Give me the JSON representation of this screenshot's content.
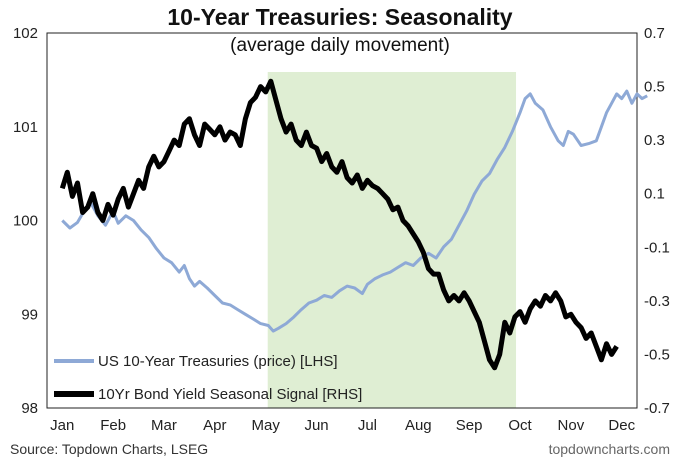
{
  "chart_data": {
    "type": "line",
    "title": "10-Year Treasuries: Seasonality",
    "subtitle": "(average daily movement)",
    "x_categories": [
      "Jan",
      "Feb",
      "Mar",
      "Apr",
      "May",
      "Jun",
      "Jul",
      "Aug",
      "Sep",
      "Oct",
      "Nov",
      "Dec"
    ],
    "y_left": {
      "range": [
        98,
        102
      ],
      "ticks": [
        "98",
        "99",
        "100",
        "101",
        "102"
      ]
    },
    "y_right": {
      "range": [
        -0.7,
        0.7
      ],
      "ticks": [
        "0.7",
        "0.5",
        "0.3",
        "0.1",
        "-0.1",
        "-0.3",
        "-0.5",
        "-0.7"
      ]
    },
    "shaded_region": {
      "from": "May",
      "to": "Oct",
      "color": "#dfeed3"
    },
    "series": [
      {
        "name": "US 10-Year Treasuries (price) [LHS]",
        "axis": "left",
        "color": "#8ea9d6",
        "points": [
          [
            0.0,
            100.0
          ],
          [
            0.15,
            99.92
          ],
          [
            0.3,
            99.98
          ],
          [
            0.45,
            100.12
          ],
          [
            0.55,
            100.2
          ],
          [
            0.7,
            100.05
          ],
          [
            0.85,
            99.95
          ],
          [
            1.0,
            100.1
          ],
          [
            1.1,
            99.97
          ],
          [
            1.25,
            100.05
          ],
          [
            1.4,
            100.0
          ],
          [
            1.55,
            99.9
          ],
          [
            1.7,
            99.82
          ],
          [
            1.85,
            99.7
          ],
          [
            2.0,
            99.6
          ],
          [
            2.15,
            99.55
          ],
          [
            2.3,
            99.45
          ],
          [
            2.4,
            99.52
          ],
          [
            2.5,
            99.38
          ],
          [
            2.6,
            99.3
          ],
          [
            2.7,
            99.35
          ],
          [
            2.85,
            99.28
          ],
          [
            3.0,
            99.2
          ],
          [
            3.15,
            99.12
          ],
          [
            3.3,
            99.1
          ],
          [
            3.45,
            99.05
          ],
          [
            3.6,
            99.0
          ],
          [
            3.75,
            98.95
          ],
          [
            3.9,
            98.9
          ],
          [
            4.05,
            98.88
          ],
          [
            4.15,
            98.82
          ],
          [
            4.25,
            98.85
          ],
          [
            4.4,
            98.9
          ],
          [
            4.55,
            98.97
          ],
          [
            4.7,
            99.05
          ],
          [
            4.85,
            99.12
          ],
          [
            5.0,
            99.15
          ],
          [
            5.15,
            99.2
          ],
          [
            5.3,
            99.18
          ],
          [
            5.45,
            99.25
          ],
          [
            5.6,
            99.3
          ],
          [
            5.75,
            99.28
          ],
          [
            5.9,
            99.22
          ],
          [
            6.0,
            99.32
          ],
          [
            6.15,
            99.38
          ],
          [
            6.3,
            99.42
          ],
          [
            6.45,
            99.45
          ],
          [
            6.6,
            99.5
          ],
          [
            6.75,
            99.55
          ],
          [
            6.9,
            99.52
          ],
          [
            7.05,
            99.6
          ],
          [
            7.2,
            99.65
          ],
          [
            7.35,
            99.6
          ],
          [
            7.5,
            99.72
          ],
          [
            7.65,
            99.8
          ],
          [
            7.8,
            99.95
          ],
          [
            7.95,
            100.1
          ],
          [
            8.1,
            100.28
          ],
          [
            8.25,
            100.42
          ],
          [
            8.4,
            100.5
          ],
          [
            8.55,
            100.65
          ],
          [
            8.7,
            100.78
          ],
          [
            8.85,
            100.95
          ],
          [
            9.0,
            101.15
          ],
          [
            9.1,
            101.3
          ],
          [
            9.2,
            101.35
          ],
          [
            9.3,
            101.25
          ],
          [
            9.45,
            101.18
          ],
          [
            9.6,
            101.0
          ],
          [
            9.75,
            100.85
          ],
          [
            9.85,
            100.8
          ],
          [
            9.95,
            100.95
          ],
          [
            10.05,
            100.92
          ],
          [
            10.2,
            100.8
          ],
          [
            10.35,
            100.82
          ],
          [
            10.5,
            100.85
          ],
          [
            10.6,
            101.0
          ],
          [
            10.7,
            101.15
          ],
          [
            10.8,
            101.25
          ],
          [
            10.9,
            101.35
          ],
          [
            11.0,
            101.3
          ],
          [
            11.1,
            101.38
          ],
          [
            11.2,
            101.25
          ],
          [
            11.3,
            101.35
          ],
          [
            11.4,
            101.3
          ],
          [
            11.5,
            101.33
          ]
        ]
      },
      {
        "name": "10Yr Bond Yield Seasonal Signal [RHS]",
        "axis": "right",
        "color": "#000000",
        "points": [
          [
            0.0,
            0.12
          ],
          [
            0.1,
            0.18
          ],
          [
            0.2,
            0.09
          ],
          [
            0.3,
            0.14
          ],
          [
            0.4,
            0.03
          ],
          [
            0.5,
            0.05
          ],
          [
            0.6,
            0.1
          ],
          [
            0.7,
            0.03
          ],
          [
            0.8,
            0.0
          ],
          [
            0.9,
            0.06
          ],
          [
            1.0,
            0.02
          ],
          [
            1.1,
            0.08
          ],
          [
            1.2,
            0.12
          ],
          [
            1.3,
            0.05
          ],
          [
            1.4,
            0.1
          ],
          [
            1.5,
            0.15
          ],
          [
            1.6,
            0.12
          ],
          [
            1.7,
            0.2
          ],
          [
            1.8,
            0.24
          ],
          [
            1.9,
            0.2
          ],
          [
            2.0,
            0.22
          ],
          [
            2.1,
            0.26
          ],
          [
            2.2,
            0.3
          ],
          [
            2.3,
            0.28
          ],
          [
            2.4,
            0.36
          ],
          [
            2.5,
            0.38
          ],
          [
            2.6,
            0.32
          ],
          [
            2.7,
            0.28
          ],
          [
            2.8,
            0.36
          ],
          [
            2.9,
            0.34
          ],
          [
            3.0,
            0.32
          ],
          [
            3.1,
            0.35
          ],
          [
            3.2,
            0.3
          ],
          [
            3.3,
            0.33
          ],
          [
            3.4,
            0.32
          ],
          [
            3.5,
            0.28
          ],
          [
            3.6,
            0.38
          ],
          [
            3.7,
            0.44
          ],
          [
            3.8,
            0.46
          ],
          [
            3.9,
            0.5
          ],
          [
            4.0,
            0.48
          ],
          [
            4.1,
            0.52
          ],
          [
            4.2,
            0.45
          ],
          [
            4.3,
            0.38
          ],
          [
            4.4,
            0.33
          ],
          [
            4.5,
            0.36
          ],
          [
            4.6,
            0.3
          ],
          [
            4.7,
            0.28
          ],
          [
            4.8,
            0.33
          ],
          [
            4.9,
            0.28
          ],
          [
            5.0,
            0.27
          ],
          [
            5.1,
            0.22
          ],
          [
            5.2,
            0.25
          ],
          [
            5.3,
            0.2
          ],
          [
            5.4,
            0.18
          ],
          [
            5.5,
            0.22
          ],
          [
            5.6,
            0.16
          ],
          [
            5.7,
            0.14
          ],
          [
            5.8,
            0.17
          ],
          [
            5.9,
            0.12
          ],
          [
            6.0,
            0.15
          ],
          [
            6.1,
            0.13
          ],
          [
            6.2,
            0.12
          ],
          [
            6.3,
            0.1
          ],
          [
            6.4,
            0.08
          ],
          [
            6.5,
            0.04
          ],
          [
            6.6,
            0.05
          ],
          [
            6.7,
            0.0
          ],
          [
            6.8,
            -0.02
          ],
          [
            6.9,
            -0.05
          ],
          [
            7.0,
            -0.08
          ],
          [
            7.1,
            -0.12
          ],
          [
            7.2,
            -0.18
          ],
          [
            7.3,
            -0.2
          ],
          [
            7.4,
            -0.2
          ],
          [
            7.5,
            -0.26
          ],
          [
            7.6,
            -0.3
          ],
          [
            7.7,
            -0.28
          ],
          [
            7.8,
            -0.3
          ],
          [
            7.9,
            -0.27
          ],
          [
            8.0,
            -0.3
          ],
          [
            8.1,
            -0.34
          ],
          [
            8.2,
            -0.38
          ],
          [
            8.3,
            -0.45
          ],
          [
            8.4,
            -0.52
          ],
          [
            8.5,
            -0.55
          ],
          [
            8.6,
            -0.5
          ],
          [
            8.7,
            -0.38
          ],
          [
            8.8,
            -0.42
          ],
          [
            8.9,
            -0.36
          ],
          [
            9.0,
            -0.34
          ],
          [
            9.1,
            -0.38
          ],
          [
            9.2,
            -0.33
          ],
          [
            9.3,
            -0.3
          ],
          [
            9.4,
            -0.32
          ],
          [
            9.5,
            -0.28
          ],
          [
            9.6,
            -0.3
          ],
          [
            9.7,
            -0.27
          ],
          [
            9.8,
            -0.3
          ],
          [
            9.9,
            -0.36
          ],
          [
            10.0,
            -0.35
          ],
          [
            10.1,
            -0.38
          ],
          [
            10.2,
            -0.4
          ],
          [
            10.3,
            -0.44
          ],
          [
            10.4,
            -0.42
          ],
          [
            10.5,
            -0.47
          ],
          [
            10.6,
            -0.52
          ],
          [
            10.7,
            -0.46
          ],
          [
            10.8,
            -0.5
          ],
          [
            10.9,
            -0.47
          ]
        ]
      }
    ],
    "legend_position": "bottom-left",
    "source": "Source: Topdown Charts, LSEG",
    "brand": "topdowncharts.com"
  }
}
